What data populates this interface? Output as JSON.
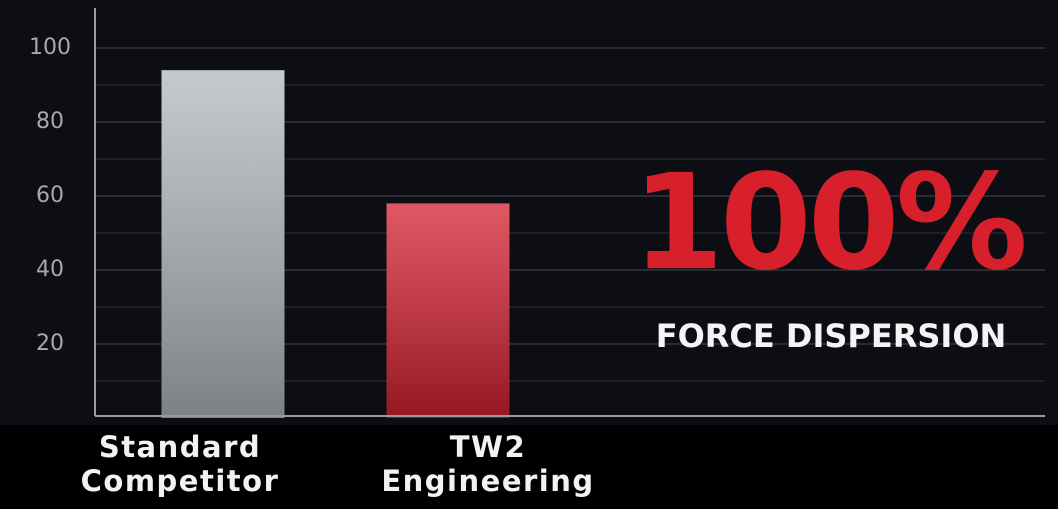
{
  "chart_data": {
    "type": "bar",
    "categories": [
      "Standard Competitor",
      "TW2 Engineering"
    ],
    "values": [
      94,
      58
    ],
    "colors": [
      "#b4b8bc",
      "#d42030"
    ],
    "ylim": [
      0,
      110
    ],
    "yticks": [
      20,
      40,
      60,
      80,
      100
    ],
    "minor_yticks": [
      10,
      30,
      50,
      70,
      90
    ],
    "grid": true,
    "annotations": [
      "100%",
      "FORCE DISPERSION"
    ]
  }
}
